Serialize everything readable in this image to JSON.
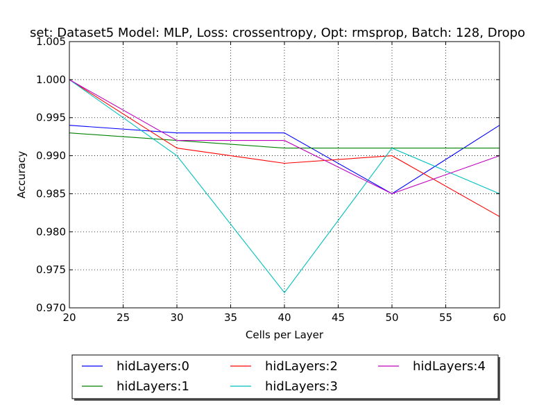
{
  "chart_data": {
    "type": "line",
    "title": "set: Dataset5 Model: MLP, Loss: crossentropy, Opt: rmsprop, Batch: 128, Dropo",
    "xlabel": "Cells per Layer",
    "ylabel": "Accuracy",
    "x": [
      20,
      30,
      40,
      50,
      60
    ],
    "xlim": [
      20,
      60
    ],
    "ylim": [
      0.97,
      1.005
    ],
    "xticks": [
      "20",
      "25",
      "30",
      "35",
      "40",
      "45",
      "50",
      "55",
      "60"
    ],
    "yticks": [
      "0.970",
      "0.975",
      "0.980",
      "0.985",
      "0.990",
      "0.995",
      "1.000",
      "1.005"
    ],
    "grid": true,
    "legend_position": "bottom (below plot), 3 columns",
    "series": [
      {
        "name": "hidLayers:0",
        "color": "#0000ff",
        "values": [
          0.994,
          0.993,
          0.993,
          0.985,
          0.994
        ]
      },
      {
        "name": "hidLayers:1",
        "color": "#008000",
        "values": [
          0.993,
          0.992,
          0.991,
          0.991,
          0.991
        ]
      },
      {
        "name": "hidLayers:2",
        "color": "#ff0000",
        "values": [
          1.0,
          0.991,
          0.989,
          0.99,
          0.982
        ]
      },
      {
        "name": "hidLayers:3",
        "color": "#00bfbf",
        "values": [
          1.0,
          0.99,
          0.972,
          0.991,
          0.985
        ]
      },
      {
        "name": "hidLayers:4",
        "color": "#bf00bf",
        "values": [
          1.0,
          0.992,
          0.992,
          0.985,
          0.99
        ]
      }
    ]
  }
}
